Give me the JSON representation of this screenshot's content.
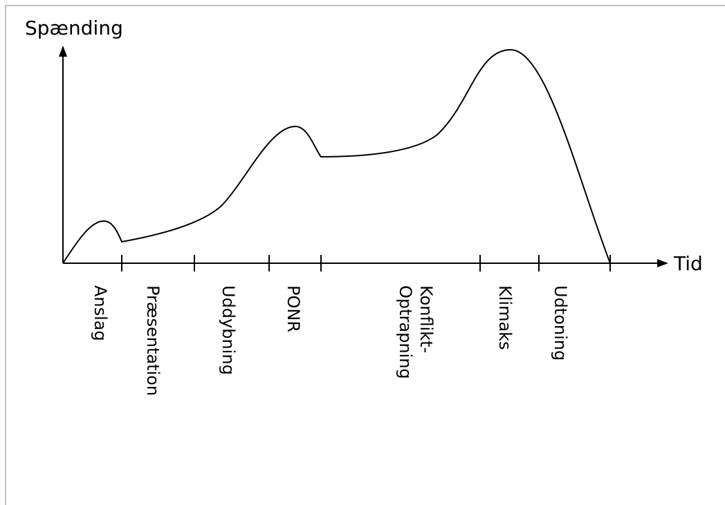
{
  "y_axis_label": "Spænding",
  "x_axis_label": "Tid",
  "phases": [
    {
      "label": "Anslag"
    },
    {
      "label": "Præsentation"
    },
    {
      "label": "Uddybning"
    },
    {
      "label": "PONR"
    },
    {
      "label": "Konflikt-\nOptrapning"
    },
    {
      "label": "Klimaks"
    },
    {
      "label": "Udtoning"
    }
  ],
  "colors": {
    "line": "#000000",
    "background": "#ffffff"
  }
}
